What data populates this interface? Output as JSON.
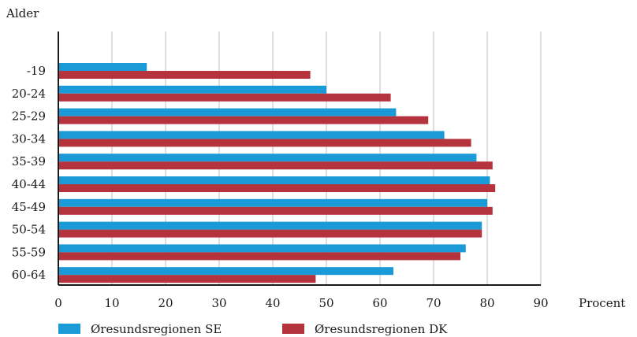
{
  "chart_data": {
    "type": "bar",
    "orientation": "horizontal",
    "categories": [
      "-19",
      "20-24",
      "25-29",
      "30-34",
      "35-39",
      "40-44",
      "45-49",
      "50-54",
      "55-59",
      "60-64"
    ],
    "series": [
      {
        "name": "Øresundsregionen SE",
        "color": "#1a9bd7",
        "values": [
          16.5,
          50,
          63,
          72,
          78,
          80.5,
          80,
          79,
          76,
          62.5
        ]
      },
      {
        "name": "Øresundsregionen DK",
        "color": "#b5333c",
        "values": [
          47,
          62,
          69,
          77,
          81,
          81.5,
          81,
          79,
          75,
          48
        ]
      }
    ],
    "xlabel": "Procent",
    "ylabel": "Alder",
    "xlim": [
      0,
      90
    ],
    "xticks": [
      "0",
      "10",
      "20",
      "30",
      "40",
      "50",
      "60",
      "70",
      "80",
      "90"
    ],
    "grid": "vertical",
    "legend": "bottom"
  }
}
